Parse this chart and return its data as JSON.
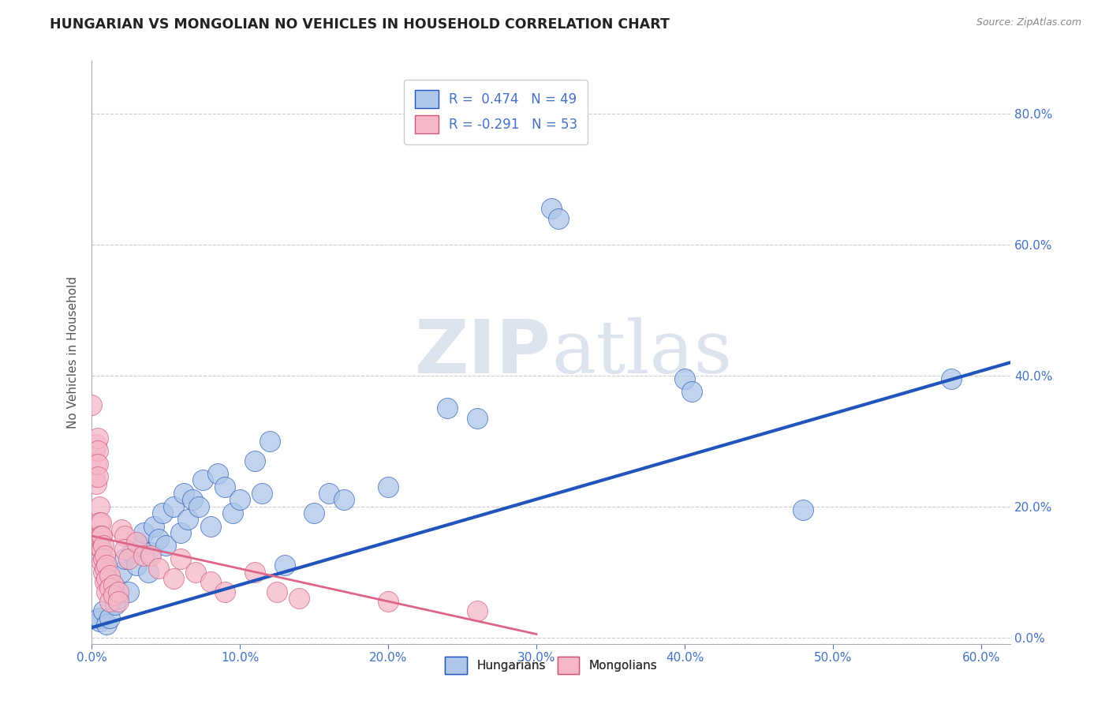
{
  "title": "HUNGARIAN VS MONGOLIAN NO VEHICLES IN HOUSEHOLD CORRELATION CHART",
  "source": "Source: ZipAtlas.com",
  "xmin": 0.0,
  "xmax": 0.62,
  "ymin": -0.01,
  "ymax": 0.88,
  "legend_r_hungarian": "R =  0.474",
  "legend_n_hungarian": "N = 49",
  "legend_r_mongolian": "R = -0.291",
  "legend_n_mongolian": "N = 53",
  "hungarian_color": "#aec6e8",
  "mongolian_color": "#f5b8c8",
  "hungarian_line_color": "#2255bb",
  "mongolian_line_color": "#dd6688",
  "background_color": "#ffffff",
  "watermark_color": "#dde4f0",
  "hungarian_scatter": [
    [
      0.005,
      0.025
    ],
    [
      0.005,
      0.03
    ],
    [
      0.008,
      0.04
    ],
    [
      0.01,
      0.02
    ],
    [
      0.012,
      0.03
    ],
    [
      0.015,
      0.08
    ],
    [
      0.016,
      0.05
    ],
    [
      0.018,
      0.06
    ],
    [
      0.02,
      0.1
    ],
    [
      0.022,
      0.12
    ],
    [
      0.025,
      0.07
    ],
    [
      0.027,
      0.13
    ],
    [
      0.03,
      0.11
    ],
    [
      0.032,
      0.14
    ],
    [
      0.035,
      0.16
    ],
    [
      0.038,
      0.1
    ],
    [
      0.04,
      0.13
    ],
    [
      0.042,
      0.17
    ],
    [
      0.045,
      0.15
    ],
    [
      0.048,
      0.19
    ],
    [
      0.05,
      0.14
    ],
    [
      0.055,
      0.2
    ],
    [
      0.06,
      0.16
    ],
    [
      0.062,
      0.22
    ],
    [
      0.065,
      0.18
    ],
    [
      0.068,
      0.21
    ],
    [
      0.072,
      0.2
    ],
    [
      0.075,
      0.24
    ],
    [
      0.08,
      0.17
    ],
    [
      0.085,
      0.25
    ],
    [
      0.09,
      0.23
    ],
    [
      0.095,
      0.19
    ],
    [
      0.1,
      0.21
    ],
    [
      0.11,
      0.27
    ],
    [
      0.115,
      0.22
    ],
    [
      0.12,
      0.3
    ],
    [
      0.13,
      0.11
    ],
    [
      0.15,
      0.19
    ],
    [
      0.16,
      0.22
    ],
    [
      0.17,
      0.21
    ],
    [
      0.2,
      0.23
    ],
    [
      0.24,
      0.35
    ],
    [
      0.26,
      0.335
    ],
    [
      0.31,
      0.655
    ],
    [
      0.315,
      0.64
    ],
    [
      0.4,
      0.395
    ],
    [
      0.405,
      0.375
    ],
    [
      0.48,
      0.195
    ],
    [
      0.58,
      0.395
    ]
  ],
  "mongolian_scatter": [
    [
      0.0,
      0.355
    ],
    [
      0.002,
      0.285
    ],
    [
      0.002,
      0.245
    ],
    [
      0.003,
      0.295
    ],
    [
      0.003,
      0.265
    ],
    [
      0.003,
      0.235
    ],
    [
      0.004,
      0.305
    ],
    [
      0.004,
      0.285
    ],
    [
      0.004,
      0.265
    ],
    [
      0.004,
      0.245
    ],
    [
      0.005,
      0.2
    ],
    [
      0.005,
      0.175
    ],
    [
      0.005,
      0.155
    ],
    [
      0.006,
      0.175
    ],
    [
      0.006,
      0.155
    ],
    [
      0.006,
      0.135
    ],
    [
      0.007,
      0.155
    ],
    [
      0.007,
      0.135
    ],
    [
      0.007,
      0.115
    ],
    [
      0.008,
      0.14
    ],
    [
      0.008,
      0.12
    ],
    [
      0.008,
      0.1
    ],
    [
      0.009,
      0.125
    ],
    [
      0.009,
      0.105
    ],
    [
      0.009,
      0.085
    ],
    [
      0.01,
      0.11
    ],
    [
      0.01,
      0.09
    ],
    [
      0.01,
      0.07
    ],
    [
      0.012,
      0.095
    ],
    [
      0.012,
      0.075
    ],
    [
      0.012,
      0.055
    ],
    [
      0.015,
      0.08
    ],
    [
      0.015,
      0.065
    ],
    [
      0.018,
      0.07
    ],
    [
      0.018,
      0.055
    ],
    [
      0.02,
      0.165
    ],
    [
      0.022,
      0.155
    ],
    [
      0.022,
      0.135
    ],
    [
      0.025,
      0.12
    ],
    [
      0.03,
      0.145
    ],
    [
      0.035,
      0.125
    ],
    [
      0.04,
      0.125
    ],
    [
      0.045,
      0.105
    ],
    [
      0.055,
      0.09
    ],
    [
      0.06,
      0.12
    ],
    [
      0.07,
      0.1
    ],
    [
      0.08,
      0.085
    ],
    [
      0.09,
      0.07
    ],
    [
      0.11,
      0.1
    ],
    [
      0.125,
      0.07
    ],
    [
      0.14,
      0.06
    ],
    [
      0.2,
      0.055
    ],
    [
      0.26,
      0.04
    ]
  ],
  "hun_line_x": [
    0.0,
    0.62
  ],
  "hun_line_y": [
    0.015,
    0.42
  ],
  "mon_line_x": [
    0.0,
    0.3
  ],
  "mon_line_y": [
    0.155,
    0.005
  ]
}
